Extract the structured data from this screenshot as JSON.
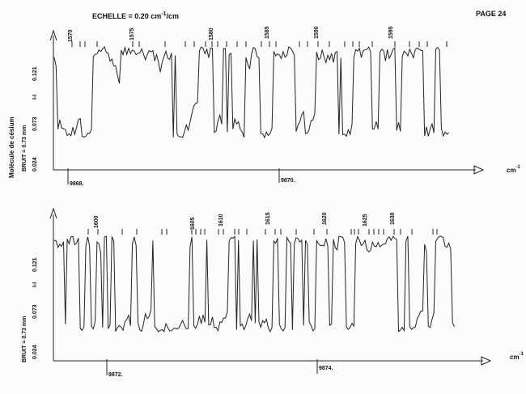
{
  "header": {
    "scale_prefix": "ECHELLE = 0.20 cm",
    "scale_exp": "-1",
    "scale_suffix": "/cm",
    "page": "PAGE 24"
  },
  "side_label": "Molécule de césium",
  "chart_data": [
    {
      "type": "line",
      "ylabel": "I-I",
      "noise_label": "BRUIT = 0.73 mm",
      "y_ticks": [
        "0.024",
        "0.073",
        "0.121"
      ],
      "ylim": [
        0.0,
        0.17
      ],
      "xlim": [
        9867.8,
        9872.5
      ],
      "x_unit": "cm",
      "x_unit_exp": "-1",
      "x_ticks": [
        "9868.",
        "9870."
      ],
      "x_tick_values": [
        9868.0,
        9870.0
      ],
      "line_numbers": [
        "1570",
        "1575",
        "1580",
        "1585",
        "1590",
        "1595"
      ]
    },
    {
      "type": "line",
      "ylabel": "I-I",
      "noise_label": "BRUIT = 0.73 mm",
      "y_ticks": [
        "0.024",
        "0.073",
        "0.121"
      ],
      "ylim": [
        0.0,
        0.17
      ],
      "xlim": [
        9871.5,
        9876.3
      ],
      "x_unit": "cm",
      "x_unit_exp": "-1",
      "x_ticks": [
        "9872.",
        "9874."
      ],
      "x_tick_values": [
        9872.0,
        9874.0
      ],
      "line_numbers": [
        "1600",
        "1605",
        "1610",
        "1615",
        "1620",
        "1625",
        "1630"
      ]
    }
  ]
}
